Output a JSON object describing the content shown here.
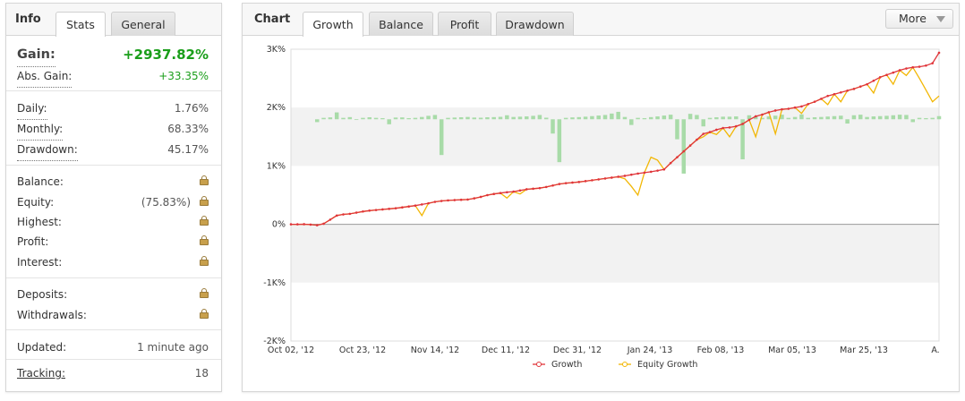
{
  "info_panel": {
    "tab_title": "Info",
    "tabs": [
      {
        "label": "Stats"
      },
      {
        "label": "General"
      }
    ],
    "gain_label": "Gain:",
    "gain_value": "+2937.82%",
    "abs_gain_label": "Abs. Gain:",
    "abs_gain_value": "+33.35%",
    "daily_label": "Daily:",
    "daily_value": "1.76%",
    "monthly_label": "Monthly:",
    "monthly_value": "68.33%",
    "drawdown_label": "Drawdown:",
    "drawdown_value": "45.17%",
    "balance_label": "Balance:",
    "equity_label": "Equity:",
    "equity_value": "(75.83%)",
    "highest_label": "Highest:",
    "profit_label": "Profit:",
    "interest_label": "Interest:",
    "deposits_label": "Deposits:",
    "withdrawals_label": "Withdrawals:",
    "updated_label": "Updated:",
    "updated_value": "1 minute ago",
    "tracking_label": "Tracking:",
    "tracking_value": "18",
    "colors": {
      "gain_green": "#1a9e1a",
      "lock": "#c8a04c"
    }
  },
  "chart_panel": {
    "tab_title": "Chart",
    "tabs": [
      {
        "label": "Growth"
      },
      {
        "label": "Balance"
      },
      {
        "label": "Profit"
      },
      {
        "label": "Drawdown"
      }
    ],
    "more_label": "More"
  },
  "chart_data": {
    "type": "line",
    "y_ticks": [
      "3K%",
      "2K%",
      "1K%",
      "0%",
      "-1K%",
      "-2K%"
    ],
    "ylim": [
      -2000,
      3000
    ],
    "x_ticks": [
      "Oct 02, '12",
      "Oct 23, '12",
      "Nov 14, '12",
      "Dec 11, '12",
      "Dec 31, '12",
      "Jan 24, '13",
      "Feb 08, '13",
      "Mar 05, '13",
      "Mar 25, '13",
      "A."
    ],
    "x_count": 100,
    "series": [
      {
        "name": "Growth",
        "color": "#e0353a",
        "values": [
          0,
          0,
          2,
          -5,
          -15,
          10,
          80,
          150,
          170,
          180,
          200,
          220,
          235,
          245,
          255,
          265,
          275,
          290,
          305,
          320,
          340,
          360,
          385,
          400,
          410,
          415,
          420,
          425,
          445,
          470,
          500,
          520,
          535,
          550,
          560,
          580,
          600,
          610,
          620,
          640,
          665,
          690,
          705,
          715,
          725,
          740,
          755,
          770,
          785,
          800,
          815,
          830,
          850,
          870,
          885,
          900,
          920,
          940,
          1050,
          1150,
          1250,
          1350,
          1450,
          1550,
          1580,
          1620,
          1650,
          1660,
          1680,
          1720,
          1790,
          1850,
          1880,
          1920,
          1950,
          1970,
          1980,
          2000,
          2020,
          2060,
          2100,
          2150,
          2200,
          2230,
          2260,
          2290,
          2320,
          2360,
          2400,
          2460,
          2520,
          2560,
          2600,
          2640,
          2670,
          2690,
          2700,
          2720,
          2760,
          2940
        ]
      },
      {
        "name": "Equity Growth",
        "color": "#f2b705",
        "values": [
          0,
          0,
          2,
          -5,
          -15,
          10,
          80,
          150,
          170,
          180,
          200,
          220,
          235,
          245,
          255,
          265,
          275,
          290,
          305,
          320,
          150,
          360,
          385,
          400,
          410,
          415,
          420,
          425,
          445,
          470,
          500,
          520,
          535,
          450,
          560,
          520,
          600,
          610,
          620,
          640,
          665,
          690,
          705,
          715,
          725,
          740,
          755,
          770,
          785,
          800,
          815,
          780,
          650,
          500,
          885,
          1150,
          1100,
          940,
          1050,
          1150,
          1250,
          1350,
          1450,
          1500,
          1580,
          1540,
          1650,
          1500,
          1680,
          1720,
          1790,
          1500,
          1880,
          1920,
          1550,
          1970,
          1980,
          2000,
          1900,
          2060,
          2100,
          2150,
          2050,
          2230,
          2100,
          2290,
          2320,
          2360,
          2400,
          2250,
          2520,
          2560,
          2400,
          2640,
          2550,
          2690,
          2500,
          2300,
          2100,
          2200
        ]
      }
    ],
    "bars": {
      "color": "#a8dba8",
      "values": [
        0,
        0,
        0,
        0,
        -200,
        100,
        130,
        480,
        100,
        150,
        -50,
        100,
        140,
        100,
        80,
        -350,
        120,
        130,
        80,
        100,
        160,
        240,
        300,
        -2500,
        100,
        120,
        140,
        160,
        120,
        110,
        140,
        150,
        170,
        280,
        160,
        180,
        200,
        240,
        300,
        110,
        -1000,
        -3000,
        100,
        130,
        150,
        180,
        220,
        260,
        300,
        400,
        520,
        160,
        -400,
        100,
        80,
        150,
        200,
        260,
        320,
        -1400,
        -3800,
        380,
        300,
        -500,
        100,
        140,
        180,
        180,
        200,
        -2800,
        280,
        220,
        100,
        200,
        250,
        320,
        100,
        160,
        340,
        100,
        140,
        160,
        190,
        220,
        250,
        -300,
        280,
        320,
        160,
        200,
        220,
        240,
        280,
        320,
        300,
        -200,
        100,
        80,
        100,
        220
      ]
    },
    "grid": true,
    "legend": "bottom"
  }
}
